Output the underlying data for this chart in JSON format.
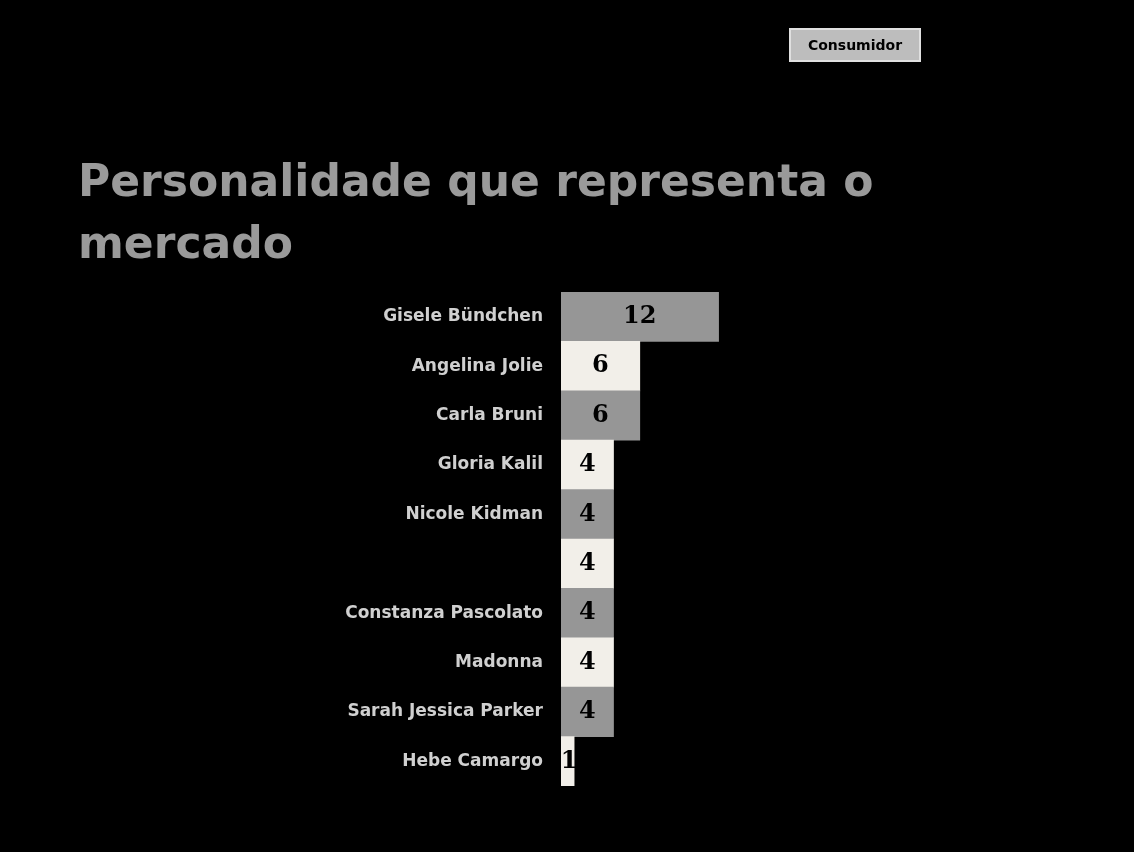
{
  "chart_data": {
    "type": "bar",
    "orientation": "horizontal",
    "title": "Personalidade que representa o mercado",
    "annotations": [
      "Consumidor"
    ],
    "categories": [
      "Gisele Bündchen",
      "Angelina Jolie",
      "Carla Bruni",
      "Gloria Kalil",
      "Nicole Kidman",
      null,
      "Constanza Pascolato",
      "Madonna",
      "Sarah Jessica Parker",
      "Hebe Camargo"
    ],
    "values": [
      12,
      6,
      6,
      4,
      4,
      4,
      4,
      4,
      4,
      1
    ],
    "colors": [
      "#969696",
      "#f2efe9",
      "#969696",
      "#f2efe9",
      "#969696",
      "#f2efe9",
      "#969696",
      "#f2efe9",
      "#969696",
      "#f2efe9"
    ],
    "data_labels": true,
    "legend": false
  }
}
